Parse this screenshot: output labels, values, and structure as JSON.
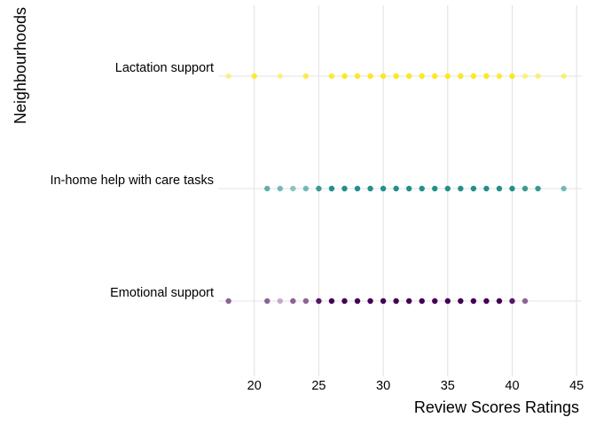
{
  "chart_data": {
    "type": "scatter",
    "title": "",
    "xlabel": "Review Scores Ratings",
    "ylabel": "Neighbourhoods",
    "xlim": [
      17.2,
      45.4
    ],
    "xticks": [
      20,
      25,
      30,
      35,
      40,
      45
    ],
    "grid": true,
    "legend": "none",
    "categories": [
      "Emotional support",
      "In-home help with care tasks",
      "Lactation support"
    ],
    "series": [
      {
        "category": "Emotional support",
        "color": "#440154",
        "points": [
          {
            "x": 18,
            "alpha": 0.6
          },
          {
            "x": 21,
            "alpha": 0.6
          },
          {
            "x": 22,
            "alpha": 0.3
          },
          {
            "x": 23,
            "alpha": 0.6
          },
          {
            "x": 24,
            "alpha": 0.6
          },
          {
            "x": 25,
            "alpha": 0.9
          },
          {
            "x": 26,
            "alpha": 1
          },
          {
            "x": 27,
            "alpha": 1
          },
          {
            "x": 28,
            "alpha": 1
          },
          {
            "x": 29,
            "alpha": 1
          },
          {
            "x": 30,
            "alpha": 1
          },
          {
            "x": 31,
            "alpha": 1
          },
          {
            "x": 32,
            "alpha": 1
          },
          {
            "x": 33,
            "alpha": 1
          },
          {
            "x": 34,
            "alpha": 1
          },
          {
            "x": 35,
            "alpha": 1
          },
          {
            "x": 36,
            "alpha": 1
          },
          {
            "x": 37,
            "alpha": 1
          },
          {
            "x": 38,
            "alpha": 1
          },
          {
            "x": 39,
            "alpha": 1
          },
          {
            "x": 40,
            "alpha": 0.9
          },
          {
            "x": 41,
            "alpha": 0.6
          }
        ]
      },
      {
        "category": "In-home help with care tasks",
        "color": "#21908C",
        "points": [
          {
            "x": 21,
            "alpha": 0.7
          },
          {
            "x": 22,
            "alpha": 0.6
          },
          {
            "x": 23,
            "alpha": 0.5
          },
          {
            "x": 24,
            "alpha": 0.6
          },
          {
            "x": 25,
            "alpha": 0.9
          },
          {
            "x": 26,
            "alpha": 1
          },
          {
            "x": 27,
            "alpha": 1
          },
          {
            "x": 28,
            "alpha": 1
          },
          {
            "x": 29,
            "alpha": 1
          },
          {
            "x": 30,
            "alpha": 1
          },
          {
            "x": 31,
            "alpha": 1
          },
          {
            "x": 32,
            "alpha": 1
          },
          {
            "x": 33,
            "alpha": 1
          },
          {
            "x": 34,
            "alpha": 1
          },
          {
            "x": 35,
            "alpha": 1
          },
          {
            "x": 36,
            "alpha": 1
          },
          {
            "x": 37,
            "alpha": 1
          },
          {
            "x": 38,
            "alpha": 1
          },
          {
            "x": 39,
            "alpha": 1
          },
          {
            "x": 40,
            "alpha": 1
          },
          {
            "x": 41,
            "alpha": 0.9
          },
          {
            "x": 42,
            "alpha": 0.9
          },
          {
            "x": 44,
            "alpha": 0.6
          }
        ]
      },
      {
        "category": "Lactation support",
        "color": "#FDE725",
        "points": [
          {
            "x": 18,
            "alpha": 0.5
          },
          {
            "x": 20,
            "alpha": 0.9
          },
          {
            "x": 22,
            "alpha": 0.5
          },
          {
            "x": 24,
            "alpha": 0.8
          },
          {
            "x": 26,
            "alpha": 0.9
          },
          {
            "x": 27,
            "alpha": 1
          },
          {
            "x": 28,
            "alpha": 1
          },
          {
            "x": 29,
            "alpha": 1
          },
          {
            "x": 30,
            "alpha": 1
          },
          {
            "x": 31,
            "alpha": 1
          },
          {
            "x": 32,
            "alpha": 1
          },
          {
            "x": 33,
            "alpha": 1
          },
          {
            "x": 34,
            "alpha": 1
          },
          {
            "x": 35,
            "alpha": 1
          },
          {
            "x": 36,
            "alpha": 1
          },
          {
            "x": 37,
            "alpha": 1
          },
          {
            "x": 38,
            "alpha": 1
          },
          {
            "x": 39,
            "alpha": 0.9
          },
          {
            "x": 40,
            "alpha": 1
          },
          {
            "x": 41,
            "alpha": 0.5
          },
          {
            "x": 42,
            "alpha": 0.6
          },
          {
            "x": 44,
            "alpha": 0.6
          }
        ]
      }
    ]
  }
}
